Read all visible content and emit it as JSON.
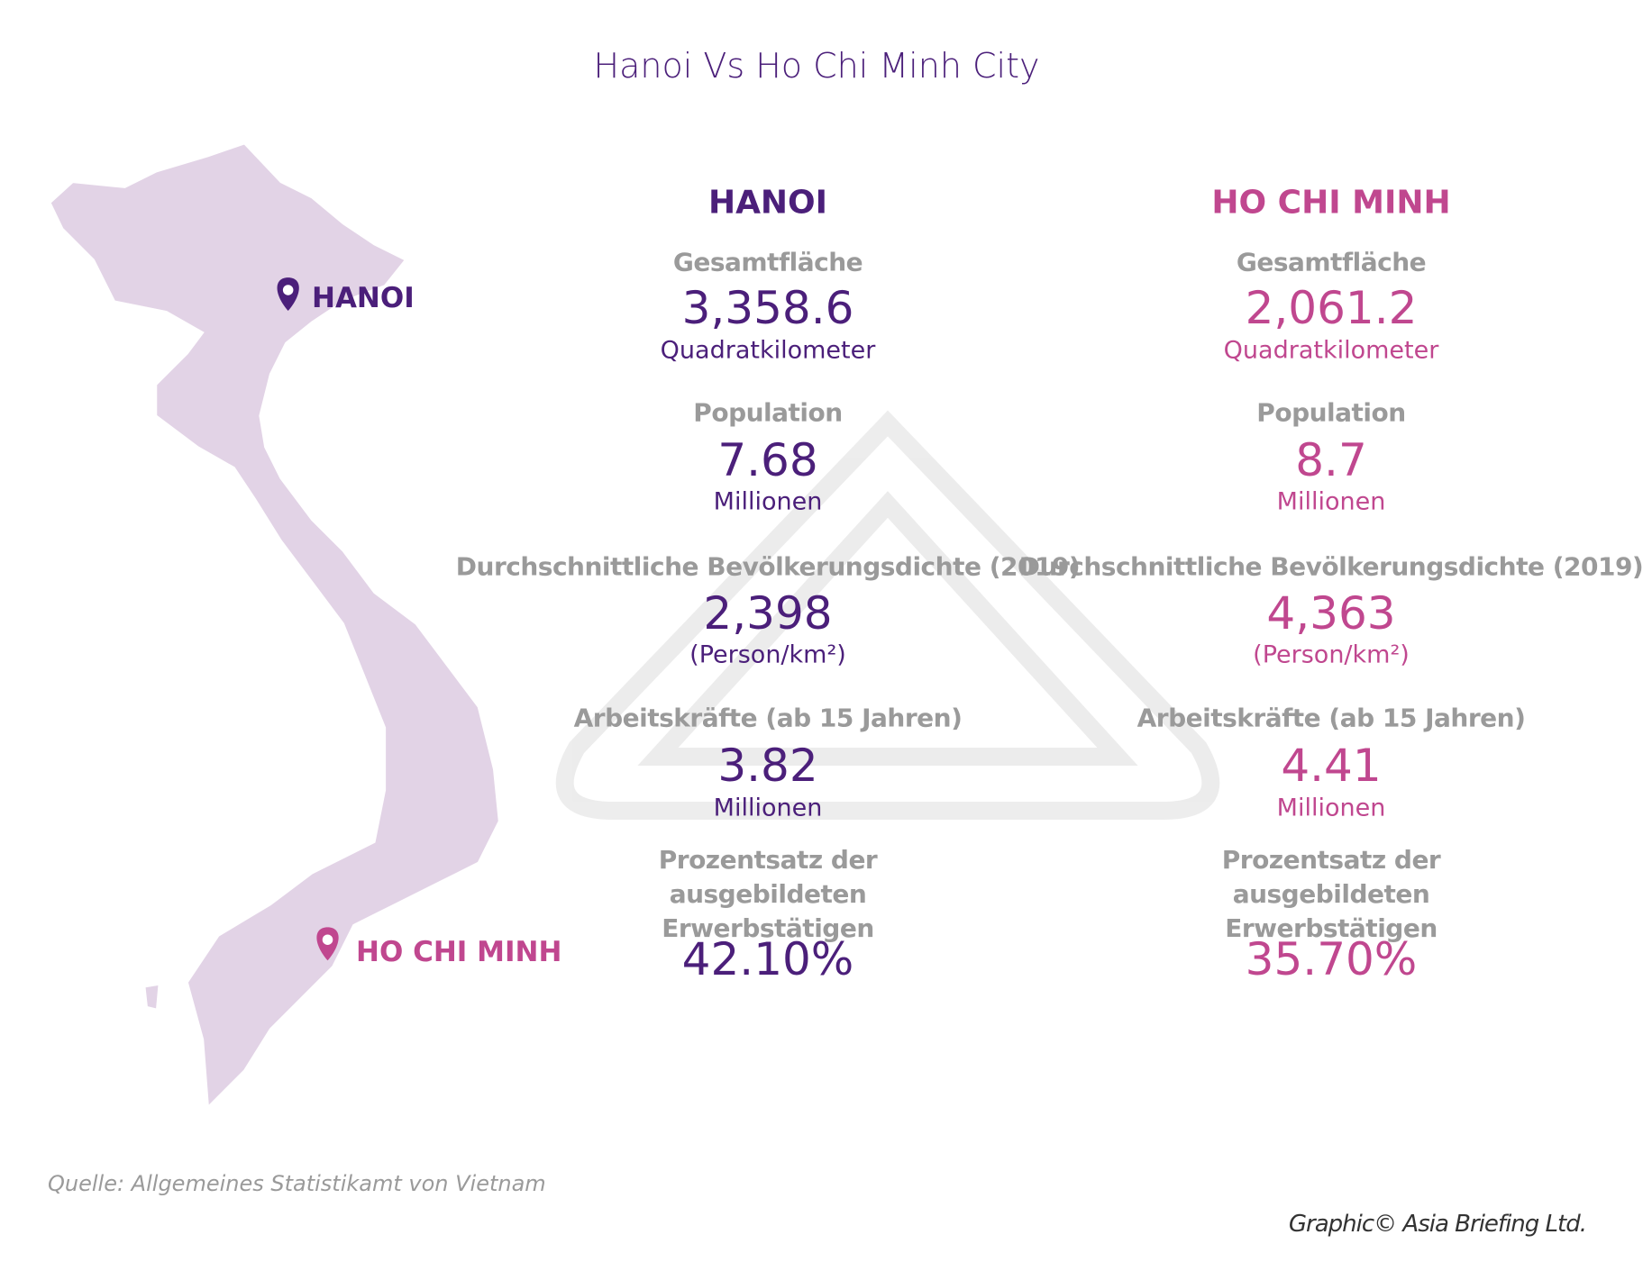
{
  "title": "Hanoi Vs Ho Chi Minh City",
  "map": {
    "labels": [
      "HANOI",
      "HO CHI MINH"
    ]
  },
  "columns": [
    {
      "heading": "HANOI",
      "color": "#4b1f7a",
      "stats": [
        {
          "label": "Gesamtfläche",
          "value": "3,358.6",
          "unit": "Quadratkilometer"
        },
        {
          "label": "Population",
          "value": "7.68",
          "unit": "Millionen"
        },
        {
          "label": "Durchschnittliche Bevölkerungsdichte (2019)",
          "value": "2,398",
          "unit": "(Person/km²)"
        },
        {
          "label": "Arbeitskräfte (ab 15 Jahren)",
          "value": "3.82",
          "unit": "Millionen"
        },
        {
          "label": "Prozentsatz der ausgebildeten Erwerbstätigen",
          "value": "42.10%"
        }
      ]
    },
    {
      "heading": "HO CHI MINH",
      "color": "#c0478f",
      "stats": [
        {
          "label": "Gesamtfläche",
          "value": "2,061.2",
          "unit": "Quadratkilometer"
        },
        {
          "label": "Population",
          "value": "8.7",
          "unit": "Millionen"
        },
        {
          "label": "Durchschnittliche Bevölkerungsdichte (2019)",
          "value": "4,363",
          "unit": "(Person/km²)"
        },
        {
          "label": "Arbeitskräfte (ab 15 Jahren)",
          "value": "4.41",
          "unit": "Millionen"
        },
        {
          "label": "Prozentsatz der ausgebildeten Erwerbstätigen",
          "value": "35.70%"
        }
      ]
    }
  ],
  "source": "Quelle: Allgemeines Statistikamt von Vietnam",
  "credit": "Graphic© Asia Briefing Ltd."
}
